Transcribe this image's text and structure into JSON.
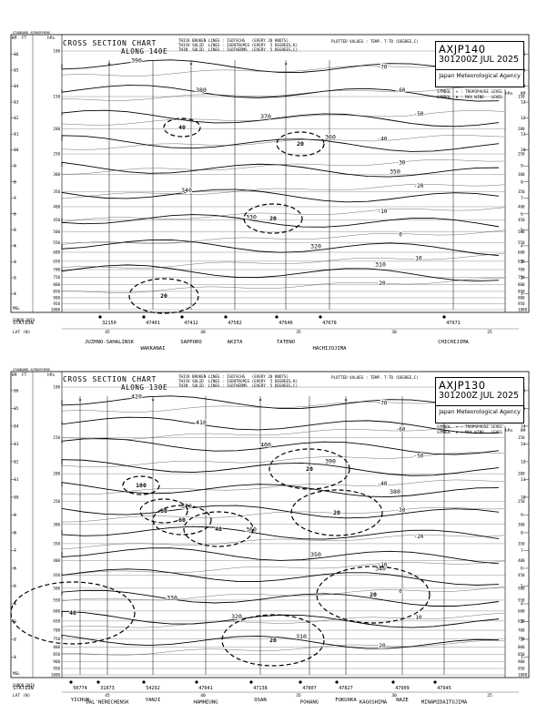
{
  "axis_headers": {
    "standard_atmosphere": "STANDARD\nATMOSPHERE",
    "km": "KM",
    "ft": "FT",
    "hpa": "hPa",
    "meter_feet": "METER\nFEET",
    "km_right": "KM",
    "hpa_right": "hPa",
    "ft_right": "x1000 ft",
    "station_label": "STATION",
    "lat_label": "LAT (N)",
    "synop_label": "SYNOP DATA",
    "msl_label": "MSL"
  },
  "legend": {
    "line1": "THICK BROKEN LINES : ISOTACHS   (EVERY 20 KNOTS)",
    "line2": "THICK SOLID  LINES : ISENTROPES (EVERY  5 DEGREES,K)",
    "line3": "THIN  SOLID  LINES : ISOTHERMS  (EVERY  5 DEGREES,C)",
    "plotted": "PLOTTED VALUES : TEMP. T-TD (DEGREE,C)",
    "sym_tropo": "SYMBOL  ✶ : TROPOPAUSE LEVEL",
    "sym_wind": "SYMBOL  ✖ : MAX WIND   LEVEL"
  },
  "panels": [
    {
      "title": "CROSS SECTION CHART",
      "subtitle": "ALONG  140E",
      "code": "AXJP140",
      "time": "301200Z JUL 2025",
      "agency": "Japan Meteorological Agency",
      "stations": [
        "32150",
        "47401",
        "47412",
        "47582",
        "47646",
        "47678",
        "47971"
      ],
      "names_top": [
        "JUZHNO-SAHALINSK",
        "SAPPORO",
        "AKITA",
        "TATENO",
        "CHICHIJIMA"
      ],
      "names_bottom": [
        "WAKKANAI",
        "HACHIJOJIMA"
      ],
      "lat_ticks": [
        "45",
        "40",
        "35",
        "30",
        "25"
      ]
    },
    {
      "title": "CROSS SECTION CHART",
      "subtitle": "ALONG  130E",
      "code": "AXJP130",
      "time": "301200Z JUL 2025",
      "agency": "Japan Meteorological Agency",
      "stations": [
        "50774",
        "31873",
        "54292",
        "47041",
        "47138",
        "47807",
        "47827",
        "47909",
        "47945"
      ],
      "names_top": [
        "YICHUN",
        "YANJI",
        "OSAN",
        "FUKUOKA",
        "NAZE"
      ],
      "names_bottom": [
        "DAL'NERECHENSK",
        "HAMHEUNG",
        "POHANG",
        "KAGOSHIMA",
        "MINAMIDAITOJIMA"
      ],
      "lat_ticks": [
        "45",
        "40",
        "35",
        "30",
        "25"
      ]
    }
  ],
  "chart_data": [
    {
      "type": "cross-section",
      "title": "CROSS SECTION CHART ALONG 140E",
      "pressure_levels_hpa": [
        100,
        150,
        200,
        250,
        300,
        350,
        400,
        450,
        500,
        550,
        600,
        650,
        700,
        750,
        800,
        850,
        900,
        950,
        1000
      ],
      "height_km_ticks": [
        "1",
        "2",
        "3",
        "4",
        "5",
        "6",
        "7",
        "8",
        "9",
        "10",
        "11",
        "12",
        "13",
        "14",
        "15",
        "16"
      ],
      "isentrope_labels_K": [
        "390",
        "380",
        "370",
        "360",
        "350",
        "340",
        "330",
        "320",
        "310"
      ],
      "isotach_labels_kt": [
        "40",
        "20",
        "20",
        "20"
      ],
      "isotherm_labels_C": [
        "-70",
        "-60",
        "-50",
        "-40",
        "-30",
        "-20",
        "-10",
        "0",
        "10",
        "20"
      ]
    },
    {
      "type": "cross-section",
      "title": "CROSS SECTION CHART ALONG 130E",
      "pressure_levels_hpa": [
        100,
        150,
        200,
        250,
        300,
        350,
        400,
        450,
        500,
        550,
        600,
        650,
        700,
        750,
        800,
        850,
        900,
        950,
        1000
      ],
      "height_km_ticks": [
        "1",
        "2",
        "3",
        "4",
        "5",
        "6",
        "7",
        "8",
        "9",
        "10",
        "11",
        "12",
        "13",
        "14",
        "15",
        "16"
      ],
      "isentrope_labels_K": [
        "420",
        "410",
        "400",
        "390",
        "380",
        "370",
        "360",
        "350",
        "340",
        "330",
        "320",
        "310"
      ],
      "isotach_labels_kt": [
        "100",
        "80",
        "60",
        "40",
        "20",
        "20",
        "20",
        "20",
        "40"
      ],
      "isotherm_labels_C": [
        "-70",
        "-60",
        "-50",
        "-40",
        "-30",
        "-20",
        "-10",
        "0",
        "10",
        "20"
      ]
    }
  ]
}
